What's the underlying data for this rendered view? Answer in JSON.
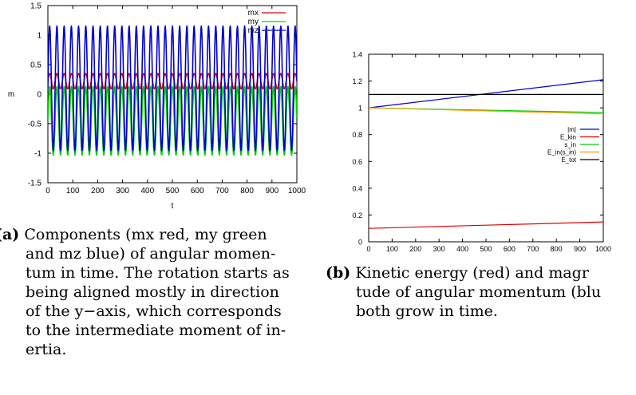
{
  "figure_a": {
    "caption_label": "(a)",
    "caption_lines": [
      "Components (mx red, my green",
      "and mz blue) of angular momen-",
      "tum in time. The rotation starts as",
      "being aligned mostly in direction",
      "of the y−axis, which corresponds",
      "to the intermediate moment of in-",
      "ertia."
    ]
  },
  "figure_b": {
    "caption_label": "(b)",
    "caption_lines": [
      "Kinetic energy (red) and magr",
      "tude of angular momentum (blu",
      "both grow in time."
    ]
  },
  "chart_data": [
    {
      "type": "line",
      "xlabel": "t",
      "ylabel": "m",
      "xlim": [
        0,
        1000
      ],
      "ylim": [
        -1.5,
        1.5
      ],
      "x_ticks": [
        "0",
        "100",
        "200",
        "300",
        "400",
        "500",
        "600",
        "700",
        "800",
        "900",
        "1000"
      ],
      "y_ticks": [
        "1.5",
        "1",
        "0.5",
        "0",
        "-0.5",
        "-1",
        "-1.5"
      ],
      "legend_position": "top-right",
      "grid": false,
      "series": [
        {
          "name": "mx",
          "color": "#e00000",
          "form": "oscillation",
          "center": 0.22,
          "amplitude": 0.13,
          "period": 29
        },
        {
          "name": "my",
          "color": "#00d000",
          "form": "oscillation",
          "center": -0.45,
          "amplitude": 0.58,
          "period": 29
        },
        {
          "name": "mz",
          "color": "#0000d0",
          "form": "oscillation",
          "center": 0.1,
          "amplitude": 1.05,
          "period": 29
        }
      ]
    },
    {
      "type": "line",
      "xlabel": "",
      "ylabel": "",
      "xlim": [
        0,
        1000
      ],
      "ylim": [
        0,
        1.4
      ],
      "x_ticks": [
        "0",
        "100",
        "200",
        "300",
        "400",
        "500",
        "600",
        "700",
        "800",
        "900",
        "1000"
      ],
      "y_ticks": [
        "1.4",
        "1.2",
        "1",
        "0.8",
        "0.6",
        "0.4",
        "0.2",
        "0"
      ],
      "legend_position": "right",
      "grid": false,
      "series": [
        {
          "name": "|m|",
          "color": "#0000d0",
          "x": [
            0,
            1000
          ],
          "values": [
            1.0,
            1.21
          ]
        },
        {
          "name": "E_kin",
          "color": "#e00000",
          "x": [
            0,
            1000
          ],
          "values": [
            0.1,
            0.148
          ]
        },
        {
          "name": "s_in",
          "color": "#00d000",
          "x": [
            0,
            1000
          ],
          "values": [
            1.0,
            0.965
          ]
        },
        {
          "name": "E_in(s_in)",
          "color": "#f0a000",
          "x": [
            0,
            1000
          ],
          "values": [
            1.0,
            0.955
          ]
        },
        {
          "name": "E_tot",
          "color": "#000000",
          "x": [
            0,
            1000
          ],
          "values": [
            1.1,
            1.1
          ]
        }
      ]
    }
  ]
}
